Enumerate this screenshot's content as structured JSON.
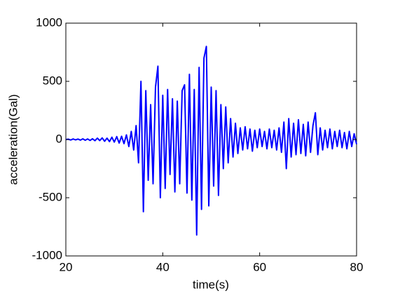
{
  "chart_data": {
    "type": "line",
    "xlabel": "time(s)",
    "ylabel": "acceleration(Gal)",
    "xlim": [
      20,
      80
    ],
    "xticks": [
      20,
      40,
      60,
      80
    ],
    "ylim": [
      -1000,
      1000
    ],
    "yticks": [
      -1000,
      -500,
      0,
      500,
      1000
    ],
    "x": [
      20,
      20.5,
      21,
      21.5,
      22,
      22.5,
      23,
      23.5,
      24,
      24.5,
      25,
      25.5,
      26,
      26.5,
      27,
      27.5,
      28,
      28.5,
      29,
      29.5,
      30,
      30.5,
      31,
      31.5,
      32,
      32.5,
      33,
      33.5,
      34,
      34.5,
      35,
      35.5,
      36,
      36.5,
      37,
      37.5,
      38,
      38.5,
      39,
      39.5,
      40,
      40.5,
      41,
      41.5,
      42,
      42.5,
      43,
      43.5,
      44,
      44.5,
      45,
      45.5,
      46,
      46.5,
      47,
      47.5,
      48,
      48.5,
      49,
      49.5,
      50,
      50.5,
      51,
      51.5,
      52,
      52.5,
      53,
      53.5,
      54,
      54.5,
      55,
      55.5,
      56,
      56.5,
      57,
      57.5,
      58,
      58.5,
      59,
      59.5,
      60,
      60.5,
      61,
      61.5,
      62,
      62.5,
      63,
      63.5,
      64,
      64.5,
      65,
      65.5,
      66,
      66.5,
      67,
      67.5,
      68,
      68.5,
      69,
      69.5,
      70,
      70.5,
      71,
      71.5,
      72,
      72.5,
      73,
      73.5,
      74,
      74.5,
      75,
      75.5,
      76,
      76.5,
      77,
      77.5,
      78,
      78.5,
      79,
      79.5,
      80
    ],
    "series": [
      {
        "color": "#0000ff",
        "values": [
          0,
          3,
          -4,
          5,
          -3,
          4,
          -5,
          6,
          -6,
          5,
          -8,
          7,
          -10,
          12,
          -9,
          14,
          -15,
          12,
          -18,
          20,
          -22,
          25,
          -30,
          28,
          -35,
          40,
          -60,
          70,
          -90,
          120,
          -200,
          500,
          -620,
          420,
          -350,
          300,
          -380,
          450,
          630,
          -500,
          380,
          -420,
          430,
          -300,
          350,
          -450,
          330,
          -380,
          420,
          470,
          -460,
          560,
          -520,
          430,
          -820,
          620,
          -600,
          700,
          800,
          -570,
          450,
          -400,
          420,
          -480,
          300,
          -250,
          280,
          -200,
          180,
          -150,
          140,
          -120,
          100,
          -90,
          110,
          -80,
          90,
          -100,
          80,
          -70,
          90,
          -60,
          70,
          -80,
          90,
          -70,
          80,
          -90,
          100,
          -110,
          150,
          -250,
          180,
          -150,
          140,
          -130,
          170,
          -120,
          130,
          -140,
          150,
          -110,
          120,
          230,
          -130,
          100,
          -90,
          80,
          -70,
          90,
          -80,
          70,
          -60,
          80,
          -70,
          60,
          -80,
          70,
          -60,
          50,
          -40
        ]
      }
    ]
  }
}
